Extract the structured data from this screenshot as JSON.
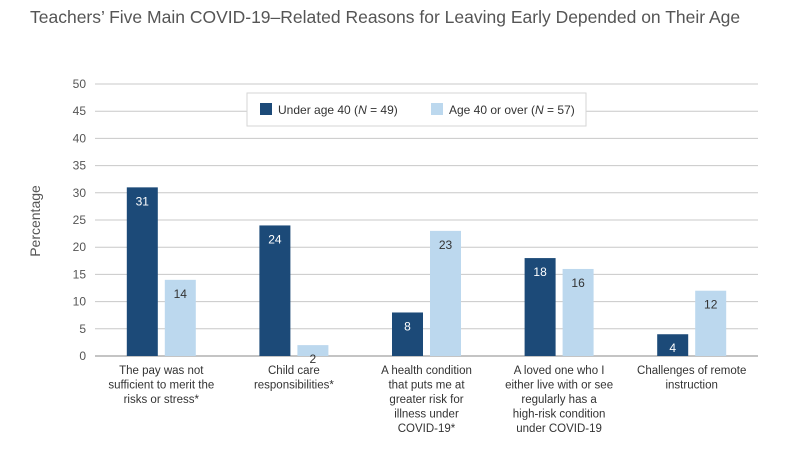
{
  "chart_data": {
    "type": "bar",
    "title": "Teachers’ Five Main COVID-19–Related Reasons for Leaving Early Depended on Their Age",
    "ylabel": "Percentage",
    "xlabel": "",
    "ylim": [
      0,
      50
    ],
    "yticks": [
      0,
      5,
      10,
      15,
      20,
      25,
      30,
      35,
      40,
      45,
      50
    ],
    "grid": true,
    "legend_position": "top-center",
    "categories": [
      [
        "The pay was not",
        "sufficient to merit the",
        "risks or stress*"
      ],
      [
        "Child care",
        "responsibilities*"
      ],
      [
        "A health condition",
        "that puts me at",
        "greater risk for",
        "illness under",
        "COVID-19*"
      ],
      [
        "A loved one who I",
        "either live with or see",
        "regularly has a",
        "high-risk condition",
        "under COVID-19"
      ],
      [
        "Challenges of remote",
        "instruction"
      ]
    ],
    "series": [
      {
        "name": "Under age 40 (N = 49)",
        "legend_parts": [
          "Under age 40 (",
          "N",
          " = 49)"
        ],
        "color": "#1c4a78",
        "label_color": "#ffffff",
        "values": [
          31,
          24,
          8,
          18,
          4
        ]
      },
      {
        "name": "Age 40 or over (N = 57)",
        "legend_parts": [
          "Age 40 or over (",
          "N",
          " = 57)"
        ],
        "color": "#bcd8ee",
        "label_color": "#333333",
        "values": [
          14,
          2,
          23,
          16,
          12
        ]
      }
    ]
  }
}
